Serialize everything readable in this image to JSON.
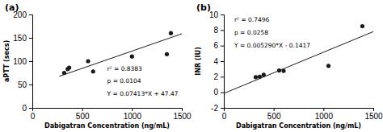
{
  "chart_data": [
    {
      "type": "scatter",
      "title": "(a)",
      "x_label": "Dabigatran Concentration (ng/mL)",
      "y_label": "aPTT (secs)",
      "xlim": [
        0,
        1500
      ],
      "ylim": [
        0,
        200
      ],
      "xticks": [
        0,
        500,
        1000,
        1500
      ],
      "yticks": [
        0,
        50,
        100,
        150,
        200
      ],
      "series": [
        {
          "type": "scatter",
          "color": "#1a1a1a",
          "x": [
            320,
            355,
            370,
            560,
            610,
            1000,
            1350,
            1390
          ],
          "values": [
            75,
            83,
            86,
            100,
            78,
            110,
            115,
            160
          ]
        },
        {
          "type": "line",
          "color": "#1a1a1a",
          "x": [
            270,
            1500
          ],
          "values": [
            67.4851,
            158.665
          ]
        }
      ],
      "annotations": [
        "r² = 0.8383",
        "p = 0.0104",
        "Y = 0.07413*X + 47.47"
      ]
    },
    {
      "type": "scatter",
      "title": "(b)",
      "x_label": "Dabigatran Concentration (ng/mL)",
      "y_label": "INR (IU)",
      "xlim": [
        0,
        1500
      ],
      "ylim": [
        -2,
        10
      ],
      "xticks": [
        0,
        500,
        1000,
        1500
      ],
      "yticks": [
        -2,
        0,
        2,
        4,
        6,
        8,
        10
      ],
      "series": [
        {
          "type": "scatter",
          "color": "#1a1a1a",
          "x": [
            320,
            360,
            400,
            555,
            600,
            1050,
            1390
          ],
          "values": [
            1.95,
            2.0,
            2.25,
            2.8,
            2.75,
            3.4,
            8.5
          ]
        },
        {
          "type": "line",
          "color": "#1a1a1a",
          "x": [
            0,
            1500
          ],
          "values": [
            -0.1417,
            7.7933
          ]
        }
      ],
      "annotations": [
        "r² = 0.7496",
        "p = 0.0258",
        "Y = 0.005290*X - 0.1417"
      ]
    }
  ]
}
